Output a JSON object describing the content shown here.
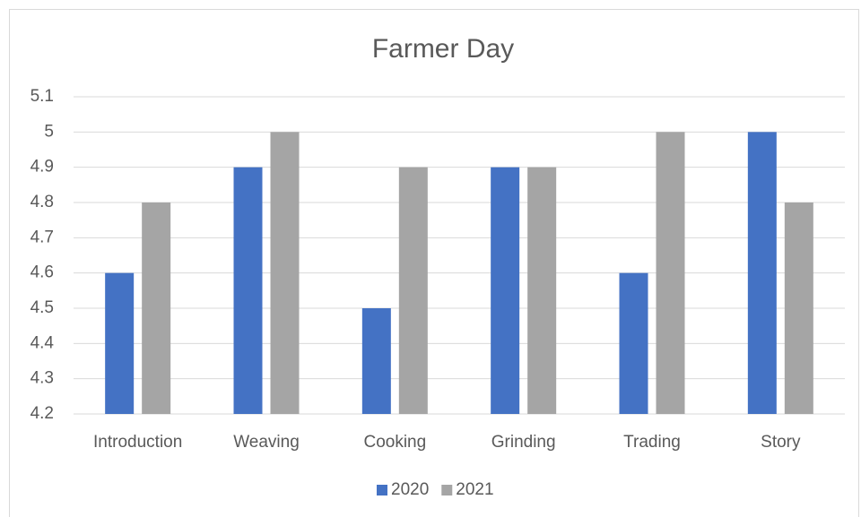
{
  "chart_data": {
    "type": "bar",
    "title": "Farmer Day",
    "categories": [
      "Introduction",
      "Weaving",
      "Cooking",
      "Grinding",
      "Trading",
      "Story"
    ],
    "series": [
      {
        "name": "2020",
        "color": "#4472c4",
        "values": [
          4.6,
          4.9,
          4.5,
          4.9,
          4.6,
          5
        ]
      },
      {
        "name": "2021",
        "color": "#a5a5a5",
        "values": [
          4.8,
          5,
          4.9,
          4.9,
          5,
          4.8
        ]
      }
    ],
    "ylim": [
      4.2,
      5.1
    ],
    "yticks": [
      4.2,
      4.3,
      4.4,
      4.5,
      4.6,
      4.7,
      4.8,
      4.9,
      5,
      5.1
    ],
    "grid": true,
    "legend": "bottom"
  }
}
